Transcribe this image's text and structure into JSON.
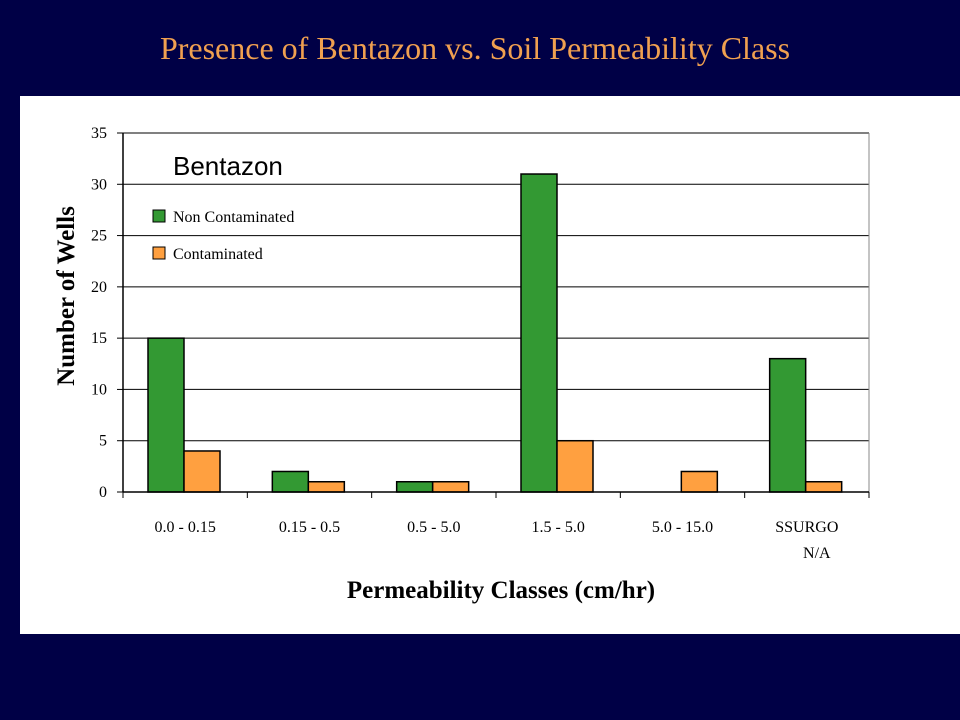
{
  "slide": {
    "title": "Presence of Bentazon vs. Soil Permeability Class"
  },
  "colors": {
    "background": "#000046",
    "title": "#f0a050",
    "panel": "#ffffff",
    "non_contaminated": "#339933",
    "contaminated": "#ffa040"
  },
  "chart_data": {
    "type": "bar",
    "title": "Bentazon",
    "xlabel": "Permeability Classes (cm/hr)",
    "ylabel": "Number of Wells",
    "categories": [
      [
        "0.0 - 0.15"
      ],
      [
        "0.15 - 0.5"
      ],
      [
        "0.5 - 5.0"
      ],
      [
        "1.5 - 5.0"
      ],
      [
        "5.0 - 15.0"
      ],
      [
        "SSURGO",
        "N/A"
      ]
    ],
    "series": [
      {
        "name": "Non Contaminated",
        "color": "#339933",
        "values": [
          15,
          2,
          1,
          31,
          0,
          13
        ]
      },
      {
        "name": "Contaminated",
        "color": "#ffa040",
        "values": [
          4,
          1,
          1,
          5,
          2,
          1
        ]
      }
    ],
    "ylim": [
      0,
      35
    ],
    "yticks": [
      0,
      5,
      10,
      15,
      20,
      25,
      30,
      35
    ],
    "grid": true,
    "legend_position": "top-left"
  }
}
